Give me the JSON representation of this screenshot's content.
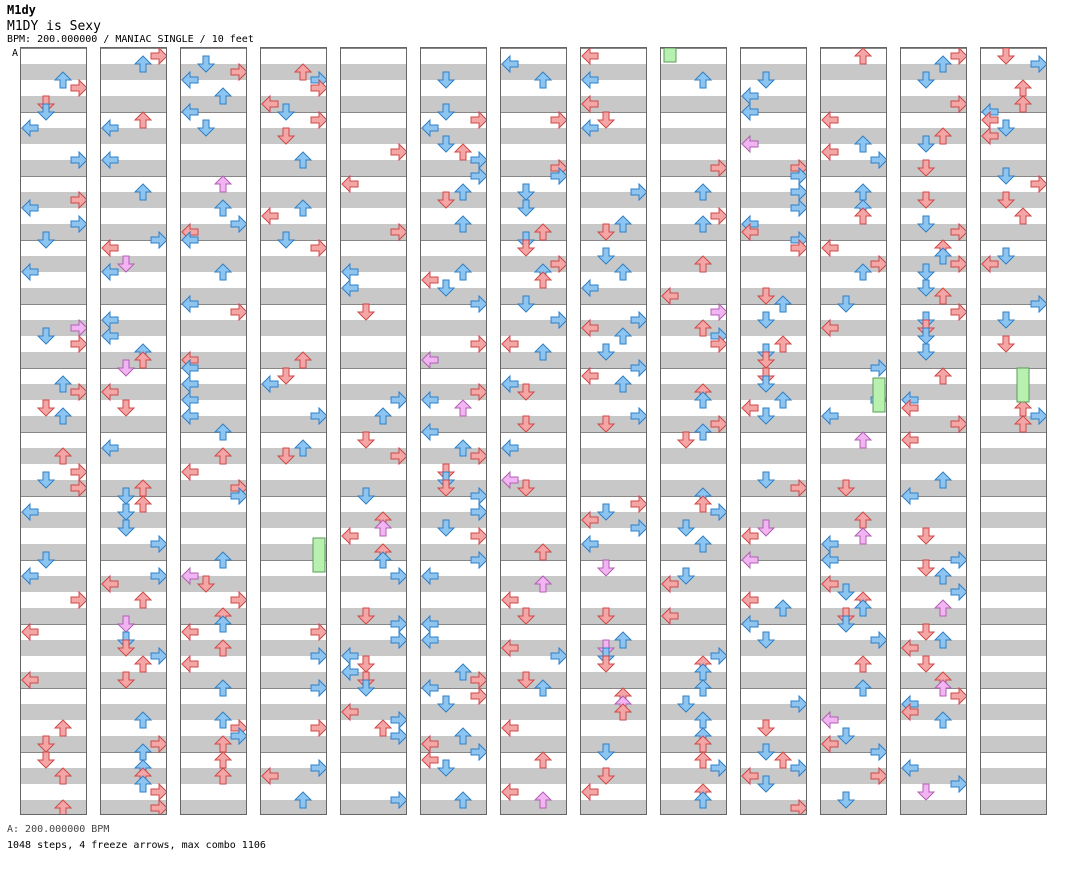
{
  "header": {
    "artist": "M1dy",
    "title": "M1DY is Sexy",
    "info": "BPM: 200.000000 / MANIAC SINGLE / 10 feet"
  },
  "section_marker": "A",
  "footer": {
    "bpm_line": "A: 200.000000 BPM",
    "stats_line": "1048 steps, 4 freeze arrows, max combo 1106"
  },
  "chart": {
    "column_count": 13,
    "measures_per_column": 12,
    "lanes": [
      "left",
      "down",
      "up",
      "right"
    ],
    "colors": {
      "quarter": "#f4a6a6",
      "eighth": "#8ec4f0",
      "sixteenth": "#f2b4f2",
      "freeze": "#b8f0b0",
      "shock": "#66dd66",
      "stripe": "#c8c8c8"
    }
  }
}
